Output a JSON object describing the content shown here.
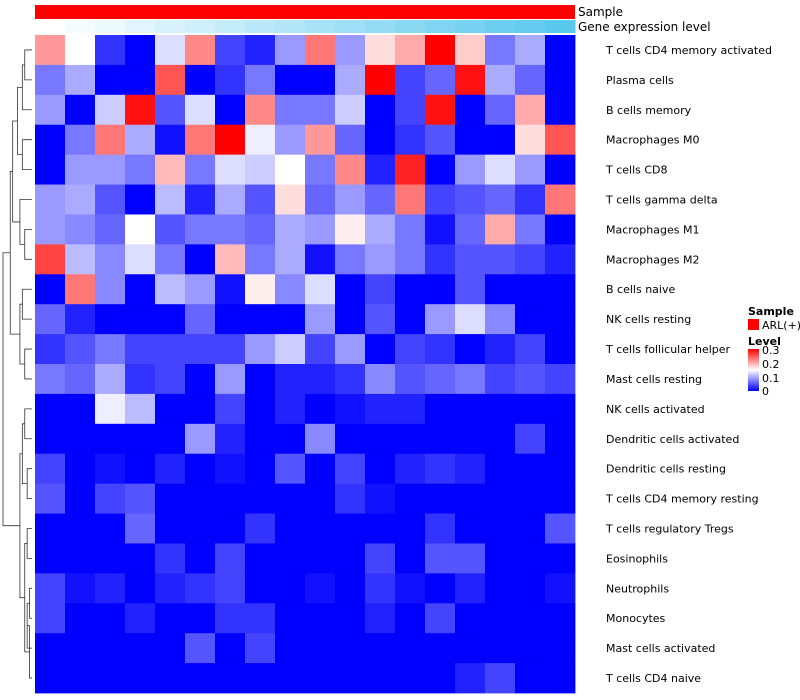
{
  "chart_data": {
    "type": "heatmap",
    "title": "",
    "annotation_tracks": [
      {
        "name": "Sample",
        "color": "#ff0000"
      },
      {
        "name": "Gene expression level",
        "gradient": [
          "#ffffff",
          "#5bc8ee"
        ]
      }
    ],
    "rows": [
      "T cells CD4 memory activated",
      "Plasma cells",
      "B cells memory",
      "Macrophages M0",
      "T cells CD8",
      "T cells gamma delta",
      "Macrophages M1",
      "Macrophages M2",
      "B cells naive",
      "NK cells resting",
      "T cells follicular helper",
      "Mast cells resting",
      "NK cells activated",
      "Dendritic cells activated",
      "Dendritic cells resting",
      "T cells CD4 memory resting",
      "T cells regulatory  Tregs",
      "Eosinophils",
      "Neutrophils",
      "Monocytes",
      "Mast cells activated",
      "T cells CD4 naive"
    ],
    "n_columns": 18,
    "values": [
      [
        0.21,
        0.15,
        0.03,
        0.0,
        0.13,
        0.22,
        0.04,
        0.02,
        0.09,
        0.23,
        0.09,
        0.17,
        0.2,
        0.3,
        0.18,
        0.07,
        0.1,
        0.0
      ],
      [
        0.07,
        0.1,
        0.0,
        0.0,
        0.25,
        0.0,
        0.03,
        0.07,
        0.0,
        0.0,
        0.1,
        0.3,
        0.04,
        0.06,
        0.29,
        0.1,
        0.06,
        0.0
      ],
      [
        0.09,
        0.0,
        0.12,
        0.29,
        0.05,
        0.13,
        0.0,
        0.22,
        0.07,
        0.07,
        0.12,
        0.0,
        0.04,
        0.29,
        0.0,
        0.06,
        0.2,
        0.0
      ],
      [
        0.0,
        0.07,
        0.23,
        0.1,
        0.01,
        0.23,
        0.3,
        0.14,
        0.09,
        0.21,
        0.06,
        0.0,
        0.03,
        0.05,
        0.0,
        0.0,
        0.17,
        0.25
      ],
      [
        0.0,
        0.09,
        0.09,
        0.07,
        0.19,
        0.07,
        0.13,
        0.12,
        0.15,
        0.07,
        0.22,
        0.02,
        0.28,
        0.0,
        0.09,
        0.13,
        0.09,
        0.0
      ],
      [
        0.09,
        0.1,
        0.05,
        0.0,
        0.11,
        0.02,
        0.1,
        0.05,
        0.17,
        0.06,
        0.09,
        0.06,
        0.23,
        0.04,
        0.05,
        0.06,
        0.03,
        0.23
      ],
      [
        0.09,
        0.08,
        0.06,
        0.15,
        0.05,
        0.07,
        0.07,
        0.06,
        0.1,
        0.09,
        0.16,
        0.1,
        0.07,
        0.01,
        0.06,
        0.2,
        0.07,
        0.0
      ],
      [
        0.26,
        0.11,
        0.08,
        0.13,
        0.07,
        0.0,
        0.19,
        0.07,
        0.1,
        0.01,
        0.07,
        0.09,
        0.07,
        0.03,
        0.05,
        0.05,
        0.04,
        0.02
      ],
      [
        0.0,
        0.23,
        0.08,
        0.0,
        0.11,
        0.09,
        0.01,
        0.16,
        0.08,
        0.13,
        0.0,
        0.04,
        0.0,
        0.0,
        0.05,
        0.0,
        0.0,
        0.0
      ],
      [
        0.06,
        0.02,
        0.0,
        0.0,
        0.0,
        0.06,
        0.0,
        0.0,
        0.0,
        0.09,
        0.0,
        0.05,
        0.0,
        0.09,
        0.13,
        0.08,
        0.0,
        0.0
      ],
      [
        0.03,
        0.05,
        0.07,
        0.04,
        0.04,
        0.04,
        0.04,
        0.09,
        0.12,
        0.04,
        0.09,
        0.0,
        0.04,
        0.03,
        0.0,
        0.02,
        0.04,
        0.0
      ],
      [
        0.07,
        0.06,
        0.1,
        0.03,
        0.04,
        0.0,
        0.09,
        0.0,
        0.02,
        0.02,
        0.03,
        0.08,
        0.05,
        0.06,
        0.07,
        0.04,
        0.05,
        0.04
      ],
      [
        0.0,
        0.0,
        0.14,
        0.11,
        0.0,
        0.0,
        0.04,
        0.0,
        0.02,
        0.0,
        0.01,
        0.02,
        0.02,
        0.0,
        0.0,
        0.0,
        0.0,
        0.0
      ],
      [
        0.0,
        0.0,
        0.0,
        0.0,
        0.0,
        0.09,
        0.02,
        0.0,
        0.0,
        0.08,
        0.0,
        0.0,
        0.0,
        0.0,
        0.0,
        0.0,
        0.04,
        0.0
      ],
      [
        0.04,
        0.0,
        0.01,
        0.0,
        0.02,
        0.0,
        0.01,
        0.0,
        0.05,
        0.0,
        0.04,
        0.0,
        0.02,
        0.03,
        0.02,
        0.0,
        0.0,
        0.0
      ],
      [
        0.05,
        0.0,
        0.04,
        0.05,
        0.0,
        0.0,
        0.0,
        0.0,
        0.0,
        0.0,
        0.03,
        0.01,
        0.0,
        0.0,
        0.0,
        0.0,
        0.0,
        0.0
      ],
      [
        0.0,
        0.0,
        0.0,
        0.06,
        0.0,
        0.0,
        0.0,
        0.03,
        0.0,
        0.0,
        0.0,
        0.0,
        0.0,
        0.03,
        0.0,
        0.0,
        0.0,
        0.05
      ],
      [
        0.0,
        0.0,
        0.0,
        0.0,
        0.03,
        0.0,
        0.04,
        0.0,
        0.0,
        0.0,
        0.0,
        0.04,
        0.0,
        0.05,
        0.05,
        0.0,
        0.0,
        0.0
      ],
      [
        0.04,
        0.01,
        0.02,
        0.0,
        0.02,
        0.03,
        0.04,
        0.0,
        0.0,
        0.01,
        0.0,
        0.03,
        0.01,
        0.0,
        0.02,
        0.0,
        0.0,
        0.01
      ],
      [
        0.04,
        0.0,
        0.0,
        0.02,
        0.0,
        0.0,
        0.03,
        0.03,
        0.0,
        0.0,
        0.0,
        0.02,
        0.0,
        0.04,
        0.0,
        0.0,
        0.0,
        0.0
      ],
      [
        0.0,
        0.0,
        0.0,
        0.0,
        0.0,
        0.05,
        0.0,
        0.04,
        0.0,
        0.0,
        0.0,
        0.0,
        0.0,
        0.0,
        0.0,
        0.0,
        0.0,
        0.0
      ],
      [
        0.0,
        0.0,
        0.0,
        0.0,
        0.0,
        0.0,
        0.0,
        0.0,
        0.0,
        0.0,
        0.0,
        0.0,
        0.0,
        0.0,
        0.02,
        0.04,
        0.0,
        0.0
      ]
    ],
    "color_scale": {
      "low": "#0000ff",
      "mid": "#ffffff",
      "high": "#ff0000",
      "domain": [
        0,
        0.15,
        0.3
      ]
    },
    "legend": {
      "sample_title": "Sample",
      "sample_entry": "ARL(+)",
      "sample_color": "#ff0000",
      "level_title": "Level",
      "level_ticks": [
        "0.3",
        "0.2",
        "0.1",
        "0"
      ]
    },
    "dendrogram": {
      "side": "left",
      "merges": [
        [
          0,
          1
        ],
        [
          22,
          2
        ],
        [
          3,
          4
        ],
        [
          23,
          24
        ],
        [
          6,
          7
        ],
        [
          5,
          26
        ],
        [
          25,
          27
        ],
        [
          8,
          9
        ],
        [
          10,
          11
        ],
        [
          29,
          30
        ],
        [
          28,
          31
        ],
        [
          12,
          13
        ],
        [
          14,
          15
        ],
        [
          33,
          34
        ],
        [
          16,
          17
        ],
        [
          18,
          19
        ],
        [
          37,
          20
        ],
        [
          38,
          21
        ],
        [
          36,
          39
        ],
        [
          35,
          40
        ],
        [
          32,
          41
        ]
      ],
      "heights": [
        3,
        4,
        4,
        6,
        3,
        5,
        8,
        4,
        3,
        5,
        9,
        3,
        2,
        4,
        2,
        1,
        2,
        1,
        3,
        5,
        12
      ]
    }
  }
}
